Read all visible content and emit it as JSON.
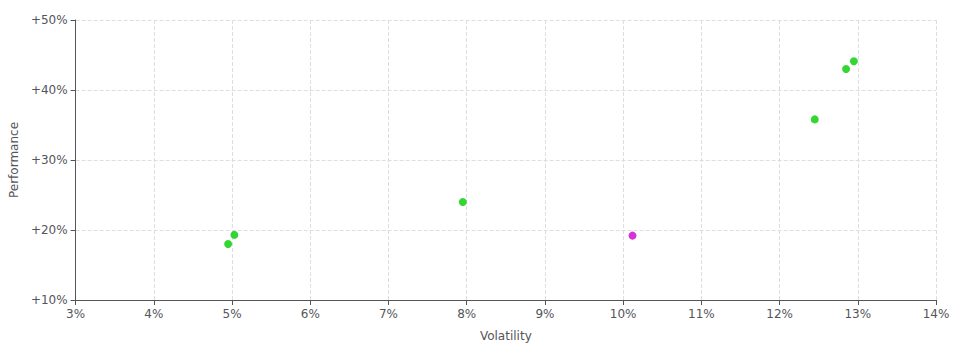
{
  "chart_data": {
    "type": "scatter",
    "xlabel": "Volatility",
    "ylabel": "Performance",
    "x": [
      0.0495,
      0.0503,
      0.0795,
      0.1012,
      0.1245,
      0.1285,
      0.1295
    ],
    "values": [
      0.18,
      0.193,
      0.24,
      0.192,
      0.358,
      0.43,
      0.441
    ],
    "colors": [
      "#00cc00",
      "#00cc00",
      "#00cc00",
      "#cc00cc",
      "#00cc00",
      "#00cc00",
      "#00cc00"
    ],
    "marker": "circle",
    "xlim": [
      0.03,
      0.14
    ],
    "ylim": [
      0.1,
      0.5
    ],
    "xticks": [
      {
        "value": 0.03,
        "label": "3%"
      },
      {
        "value": 0.04,
        "label": "4%"
      },
      {
        "value": 0.05,
        "label": "5%"
      },
      {
        "value": 0.06,
        "label": "6%"
      },
      {
        "value": 0.07,
        "label": "7%"
      },
      {
        "value": 0.08,
        "label": "8%"
      },
      {
        "value": 0.09,
        "label": "9%"
      },
      {
        "value": 0.1,
        "label": "10%"
      },
      {
        "value": 0.11,
        "label": "11%"
      },
      {
        "value": 0.12,
        "label": "12%"
      },
      {
        "value": 0.13,
        "label": "13%"
      },
      {
        "value": 0.14,
        "label": "14%"
      }
    ],
    "yticks": [
      {
        "value": 0.1,
        "label": "+10%"
      },
      {
        "value": 0.2,
        "label": "+20%"
      },
      {
        "value": 0.3,
        "label": "+30%"
      },
      {
        "value": 0.4,
        "label": "+40%"
      },
      {
        "value": 0.5,
        "label": "+50%"
      }
    ],
    "grid": true
  }
}
